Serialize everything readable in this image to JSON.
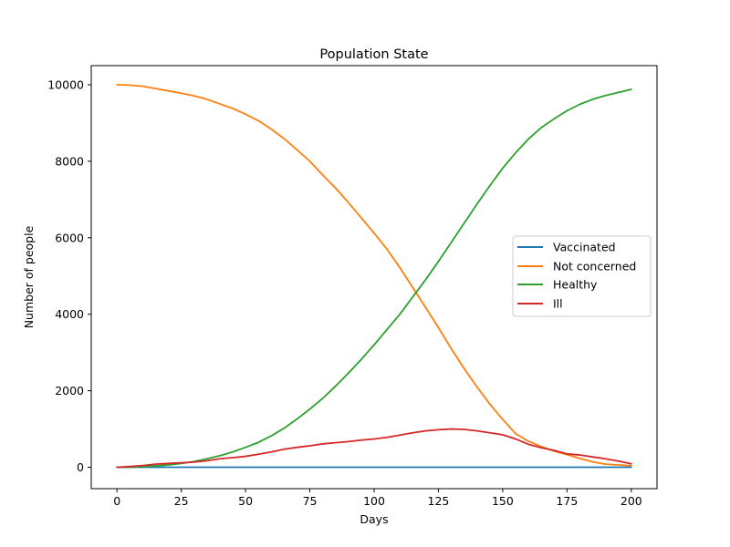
{
  "chart_data": {
    "type": "line",
    "title": "Population State",
    "xlabel": "Days",
    "ylabel": "Number of people",
    "xlim": [
      -10,
      210
    ],
    "ylim": [
      -560,
      10500
    ],
    "xticks": [
      0,
      25,
      50,
      75,
      100,
      125,
      150,
      175,
      200
    ],
    "yticks": [
      0,
      2000,
      4000,
      6000,
      8000,
      10000
    ],
    "grid": false,
    "legend_position": "center-right",
    "series": [
      {
        "name": "Vaccinated",
        "color": "#1f77b4",
        "x": [
          0,
          200
        ],
        "y": [
          0,
          0
        ]
      },
      {
        "name": "Not concerned",
        "color": "#ff7f0e",
        "x": [
          0,
          5,
          10,
          15,
          20,
          25,
          30,
          35,
          40,
          45,
          50,
          55,
          60,
          65,
          70,
          75,
          80,
          85,
          90,
          95,
          100,
          105,
          110,
          115,
          120,
          125,
          130,
          135,
          140,
          145,
          150,
          155,
          160,
          165,
          170,
          175,
          180,
          185,
          190,
          195,
          200
        ],
        "y": [
          10000,
          9990,
          9960,
          9900,
          9840,
          9780,
          9710,
          9620,
          9500,
          9380,
          9230,
          9060,
          8840,
          8590,
          8300,
          8000,
          7640,
          7300,
          6920,
          6520,
          6120,
          5700,
          5220,
          4700,
          4180,
          3650,
          3100,
          2580,
          2100,
          1650,
          1250,
          880,
          680,
          540,
          420,
          330,
          230,
          140,
          80,
          60,
          40
        ]
      },
      {
        "name": "Healthy",
        "color": "#2ca02c",
        "x": [
          0,
          5,
          10,
          15,
          20,
          25,
          30,
          35,
          40,
          45,
          50,
          55,
          60,
          65,
          70,
          75,
          80,
          85,
          90,
          95,
          100,
          105,
          110,
          115,
          120,
          125,
          130,
          135,
          140,
          145,
          150,
          155,
          160,
          165,
          170,
          175,
          180,
          185,
          190,
          195,
          200
        ],
        "y": [
          0,
          5,
          15,
          35,
          60,
          100,
          150,
          220,
          300,
          400,
          520,
          650,
          820,
          1020,
          1260,
          1520,
          1800,
          2120,
          2460,
          2820,
          3200,
          3600,
          4000,
          4450,
          4900,
          5380,
          5880,
          6380,
          6880,
          7360,
          7820,
          8220,
          8580,
          8880,
          9110,
          9320,
          9490,
          9620,
          9720,
          9800,
          9880
        ]
      },
      {
        "name": "Ill",
        "color": "#d62728",
        "x": [
          0,
          5,
          10,
          15,
          20,
          25,
          30,
          35,
          40,
          45,
          50,
          55,
          60,
          65,
          70,
          75,
          80,
          85,
          90,
          95,
          100,
          105,
          110,
          115,
          120,
          125,
          130,
          135,
          140,
          145,
          150,
          155,
          160,
          165,
          170,
          175,
          180,
          185,
          190,
          195,
          200
        ],
        "y": [
          0,
          20,
          45,
          80,
          100,
          115,
          135,
          170,
          220,
          250,
          285,
          340,
          400,
          470,
          520,
          560,
          610,
          640,
          670,
          710,
          740,
          780,
          840,
          900,
          950,
          980,
          1000,
          990,
          950,
          900,
          850,
          740,
          600,
          510,
          440,
          350,
          320,
          270,
          220,
          160,
          90
        ]
      }
    ]
  }
}
